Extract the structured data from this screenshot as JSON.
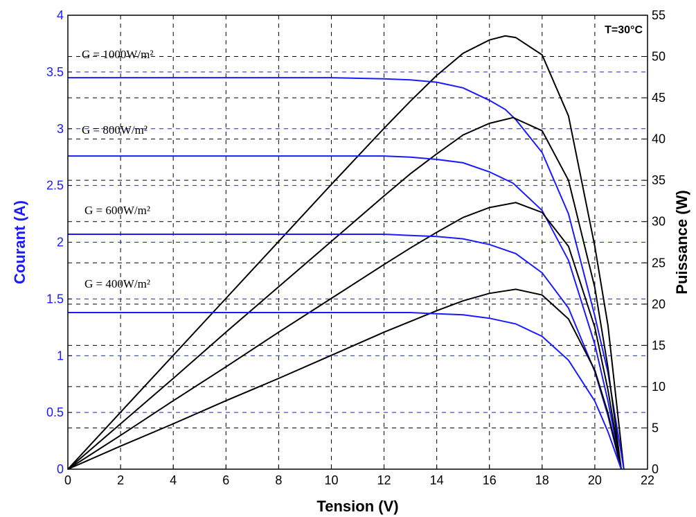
{
  "chart_data": {
    "type": "line",
    "title": "",
    "temperature_label": "T=30°C",
    "xlabel": "Tension (V)",
    "ylabel_left": "Courant (A)",
    "ylabel_right": "Puissance (W)",
    "xlim": [
      0,
      22
    ],
    "ylim_left": [
      0,
      4
    ],
    "ylim_right": [
      0,
      55
    ],
    "xticks": [
      "0",
      "2",
      "4",
      "6",
      "8",
      "10",
      "12",
      "14",
      "16",
      "18",
      "20",
      "22"
    ],
    "yticks_left": [
      "0",
      "0.5",
      "1",
      "1.5",
      "2",
      "2.5",
      "3",
      "3.5",
      "4"
    ],
    "yticks_right": [
      "0",
      "5",
      "10",
      "15",
      "20",
      "25",
      "30",
      "35",
      "40",
      "45",
      "50",
      "55"
    ],
    "grid": true,
    "colors": {
      "current": "#1a1aff",
      "power": "#000000",
      "left_axis_text": "#1a1aff",
      "grid": "#000000"
    },
    "irradiance_labels": [
      "G = 1000W/m²",
      "G = 800W/m²",
      "G = 600W/m²",
      "G = 400W/m²"
    ],
    "series": [
      {
        "irradiance": "G = 1000W/m²",
        "isc": 3.45,
        "voc": 21.1,
        "vmp": 16.6,
        "pmax": 52.5,
        "current": {
          "x": [
            0,
            2,
            4,
            6,
            8,
            10,
            12,
            13,
            14,
            15,
            16,
            16.6,
            17,
            18,
            19,
            20,
            20.5,
            21.1
          ],
          "y": [
            3.45,
            3.45,
            3.45,
            3.45,
            3.45,
            3.45,
            3.44,
            3.43,
            3.41,
            3.36,
            3.25,
            3.17,
            3.08,
            2.79,
            2.25,
            1.35,
            0.85,
            0
          ]
        },
        "power": {
          "x": [
            0,
            2,
            4,
            6,
            8,
            10,
            12,
            13,
            14,
            15,
            16,
            16.6,
            17,
            18,
            19,
            20,
            20.5,
            21.1
          ],
          "y": [
            0,
            6.9,
            13.8,
            20.7,
            27.6,
            34.5,
            41.3,
            44.6,
            47.7,
            50.4,
            52.0,
            52.5,
            52.3,
            50.2,
            42.8,
            27.0,
            17.4,
            0
          ]
        }
      },
      {
        "irradiance": "G = 800W/m²",
        "isc": 2.76,
        "voc": 21.0,
        "vmp": 16.9,
        "pmax": 42.6,
        "current": {
          "x": [
            0,
            2,
            4,
            6,
            8,
            10,
            12,
            13,
            14,
            15,
            16,
            16.9,
            18,
            19,
            20,
            20.5,
            21.0
          ],
          "y": [
            2.76,
            2.76,
            2.76,
            2.76,
            2.76,
            2.76,
            2.76,
            2.75,
            2.73,
            2.7,
            2.62,
            2.52,
            2.28,
            1.84,
            1.1,
            0.6,
            0
          ]
        },
        "power": {
          "x": [
            0,
            2,
            4,
            6,
            8,
            10,
            12,
            13,
            14,
            15,
            16,
            16.9,
            18,
            19,
            20,
            20.5,
            21.0
          ],
          "y": [
            0,
            5.5,
            11.0,
            16.6,
            22.1,
            27.6,
            33.1,
            35.8,
            38.2,
            40.5,
            41.9,
            42.6,
            41.0,
            35.0,
            22.0,
            12.3,
            0
          ]
        }
      },
      {
        "irradiance": "G = 600W/m²",
        "isc": 2.07,
        "voc": 21.0,
        "vmp": 17.0,
        "pmax": 32.3,
        "current": {
          "x": [
            0,
            2,
            4,
            6,
            8,
            10,
            12,
            13,
            14,
            15,
            16,
            17,
            18,
            19,
            20,
            20.5,
            21.0
          ],
          "y": [
            2.07,
            2.07,
            2.07,
            2.07,
            2.07,
            2.07,
            2.07,
            2.06,
            2.05,
            2.03,
            1.98,
            1.9,
            1.73,
            1.42,
            0.86,
            0.47,
            0
          ]
        },
        "power": {
          "x": [
            0,
            2,
            4,
            6,
            8,
            10,
            12,
            13,
            14,
            15,
            16,
            17,
            18,
            19,
            20,
            20.5,
            21.0
          ],
          "y": [
            0,
            4.1,
            8.3,
            12.4,
            16.6,
            20.7,
            24.8,
            26.8,
            28.7,
            30.5,
            31.7,
            32.3,
            31.1,
            27.0,
            17.2,
            9.6,
            0
          ]
        }
      },
      {
        "irradiance": "G = 400W/m²",
        "isc": 1.38,
        "voc": 21.0,
        "vmp": 17.0,
        "pmax": 21.8,
        "current": {
          "x": [
            0,
            2,
            4,
            6,
            8,
            10,
            12,
            13,
            14,
            15,
            16,
            17,
            18,
            19,
            20,
            20.5,
            21.0
          ],
          "y": [
            1.38,
            1.38,
            1.38,
            1.38,
            1.38,
            1.38,
            1.38,
            1.38,
            1.37,
            1.36,
            1.33,
            1.28,
            1.17,
            0.96,
            0.6,
            0.33,
            0
          ]
        },
        "power": {
          "x": [
            0,
            2,
            4,
            6,
            8,
            10,
            12,
            13,
            14,
            15,
            16,
            17,
            18,
            19,
            20,
            20.5,
            21.0
          ],
          "y": [
            0,
            2.8,
            5.5,
            8.3,
            11.0,
            13.8,
            16.6,
            17.9,
            19.2,
            20.4,
            21.3,
            21.8,
            21.1,
            18.2,
            12.0,
            6.8,
            0
          ]
        }
      }
    ]
  }
}
